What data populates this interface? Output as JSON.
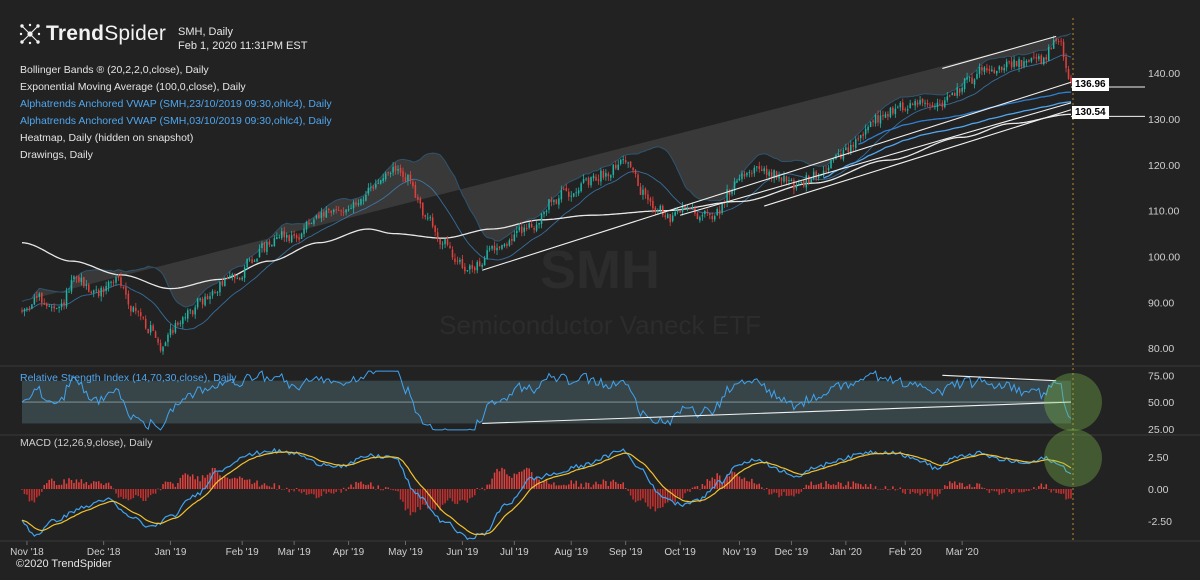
{
  "brand": {
    "name_bold": "Trend",
    "name_light": "Spider",
    "copyright": "©2020 TrendSpider"
  },
  "header": {
    "symbol_line": "SMH, Daily",
    "timestamp": "Feb 1, 2020 11:31PM EST"
  },
  "indicators": [
    {
      "label": "Bollinger Bands ® (20,2,2,0,close), Daily",
      "color": "#e4e4e4"
    },
    {
      "label": "Exponential Moving Average (100,0,close), Daily",
      "color": "#e4e4e4"
    },
    {
      "label": "Alphatrends Anchored VWAP (SMH,23/10/2019 09:30,ohlc4), Daily",
      "color": "#4fa6ee"
    },
    {
      "label": "Alphatrends Anchored VWAP (SMH,03/10/2019 09:30,ohlc4), Daily",
      "color": "#4fa6ee"
    },
    {
      "label": "Heatmap, Daily (hidden on snapshot)",
      "color": "#e4e4e4"
    },
    {
      "label": "Drawings, Daily",
      "color": "#e4e4e4"
    }
  ],
  "watermark": {
    "ticker": "SMH",
    "name": "Semiconductor Vaneck ETF"
  },
  "price_labels": {
    "upper": "136.96",
    "lower": "130.54"
  },
  "chart_data": {
    "type": "candlestick",
    "price_panel": {
      "ylim": [
        77,
        152
      ],
      "yticks": [
        80,
        90,
        100,
        110,
        120,
        130,
        140
      ],
      "ytick_labels": [
        "80.00",
        "90.00",
        "100.00",
        "110.00",
        "120.00",
        "130.00",
        "140.00"
      ],
      "anchors": [
        [
          0,
          88
        ],
        [
          6,
          91
        ],
        [
          14,
          88
        ],
        [
          22,
          95
        ],
        [
          30,
          92
        ],
        [
          38,
          95
        ],
        [
          46,
          88
        ],
        [
          52,
          84
        ],
        [
          56,
          80
        ],
        [
          60,
          84
        ],
        [
          66,
          87
        ],
        [
          72,
          90
        ],
        [
          78,
          92
        ],
        [
          82,
          95
        ],
        [
          88,
          96
        ],
        [
          92,
          99
        ],
        [
          98,
          102
        ],
        [
          104,
          105
        ],
        [
          110,
          104
        ],
        [
          116,
          107
        ],
        [
          122,
          109
        ],
        [
          128,
          110
        ],
        [
          134,
          111
        ],
        [
          140,
          114
        ],
        [
          146,
          117
        ],
        [
          150,
          119
        ],
        [
          156,
          117
        ],
        [
          160,
          112
        ],
        [
          164,
          108
        ],
        [
          170,
          103
        ],
        [
          176,
          99
        ],
        [
          181,
          97
        ],
        [
          186,
          99
        ],
        [
          190,
          102
        ],
        [
          196,
          103
        ],
        [
          202,
          106
        ],
        [
          208,
          107
        ],
        [
          214,
          112
        ],
        [
          220,
          114
        ],
        [
          228,
          116
        ],
        [
          236,
          118
        ],
        [
          242,
          121
        ],
        [
          246,
          120
        ],
        [
          250,
          114
        ],
        [
          256,
          111
        ],
        [
          262,
          108
        ],
        [
          268,
          111
        ],
        [
          274,
          109
        ],
        [
          280,
          109
        ],
        [
          286,
          114
        ],
        [
          290,
          118
        ],
        [
          296,
          119
        ],
        [
          302,
          118
        ],
        [
          308,
          117
        ],
        [
          314,
          115
        ],
        [
          318,
          117
        ],
        [
          322,
          118
        ],
        [
          328,
          121
        ],
        [
          334,
          123
        ],
        [
          340,
          127
        ],
        [
          346,
          130
        ],
        [
          352,
          132
        ],
        [
          358,
          133
        ],
        [
          364,
          134
        ],
        [
          370,
          133
        ],
        [
          376,
          135
        ],
        [
          382,
          138
        ],
        [
          388,
          141
        ],
        [
          394,
          141
        ],
        [
          400,
          142
        ],
        [
          406,
          142
        ],
        [
          412,
          143
        ],
        [
          416,
          145
        ],
        [
          418,
          148
        ],
        [
          420,
          146
        ],
        [
          422,
          142
        ],
        [
          424,
          137
        ]
      ],
      "ema100_anchors": [
        [
          0,
          103
        ],
        [
          20,
          99
        ],
        [
          40,
          96
        ],
        [
          60,
          93
        ],
        [
          80,
          95
        ],
        [
          100,
          99
        ],
        [
          120,
          103
        ],
        [
          140,
          106
        ],
        [
          150,
          105
        ],
        [
          170,
          104
        ],
        [
          190,
          106
        ],
        [
          210,
          108
        ],
        [
          230,
          109
        ],
        [
          260,
          110
        ],
        [
          290,
          112
        ],
        [
          320,
          116
        ],
        [
          350,
          121
        ],
        [
          380,
          126
        ],
        [
          400,
          129
        ],
        [
          424,
          131
        ]
      ],
      "bollinger_width": 6.5,
      "bollinger_start_bar": 0,
      "vwap_oct23_anchor_bar": 338,
      "vwap_oct03_anchor_bar": 324,
      "horizontal_levels": [
        136.96,
        130.54
      ],
      "trendlines": [
        {
          "from": [
            186,
            97
          ],
          "to": [
            424,
            138
          ]
        },
        {
          "from": [
            266,
            109
          ],
          "to": [
            424,
            133.5
          ]
        },
        {
          "from": [
            300,
            111
          ],
          "to": [
            424,
            132
          ]
        },
        {
          "from": [
            372,
            141
          ],
          "to": [
            418,
            148
          ]
        }
      ]
    },
    "rsi_panel": {
      "title": "Relative Strength Index (14,70,30,close), Daily",
      "ylim": [
        22,
        80
      ],
      "band": [
        30,
        70
      ],
      "midline": 50,
      "yticks": [
        25,
        50,
        75
      ],
      "ytick_labels": [
        "25.00",
        "50.00",
        "75.00"
      ],
      "trendlines": [
        {
          "from": [
            186,
            30
          ],
          "to": [
            424,
            50
          ]
        },
        {
          "from": [
            372,
            75
          ],
          "to": [
            418,
            70
          ]
        }
      ]
    },
    "macd_panel": {
      "title": "MACD (12,26,9,close), Daily",
      "ylim": [
        -4,
        4
      ],
      "yticks": [
        2.5,
        0,
        -2.5
      ],
      "ytick_labels": [
        "2.50",
        "0.00",
        "-2.50"
      ],
      "macd_anchors": [
        [
          0,
          -2.5
        ],
        [
          5,
          -3.6
        ],
        [
          14,
          -2.4
        ],
        [
          24,
          -1.5
        ],
        [
          34,
          -0.8
        ],
        [
          44,
          -2.2
        ],
        [
          52,
          -3.0
        ],
        [
          60,
          -2.2
        ],
        [
          70,
          -0.5
        ],
        [
          80,
          1.5
        ],
        [
          90,
          2.6
        ],
        [
          100,
          3.0
        ],
        [
          110,
          2.8
        ],
        [
          120,
          2.0
        ],
        [
          130,
          1.8
        ],
        [
          140,
          2.6
        ],
        [
          150,
          2.5
        ],
        [
          160,
          -0.5
        ],
        [
          170,
          -2.5
        ],
        [
          180,
          -3.8
        ],
        [
          186,
          -3.6
        ],
        [
          196,
          -1.2
        ],
        [
          206,
          0.8
        ],
        [
          216,
          1.2
        ],
        [
          226,
          1.8
        ],
        [
          236,
          2.5
        ],
        [
          242,
          3.1
        ],
        [
          250,
          1.6
        ],
        [
          258,
          -0.5
        ],
        [
          266,
          -1.2
        ],
        [
          274,
          -0.8
        ],
        [
          282,
          0.5
        ],
        [
          290,
          2.0
        ],
        [
          298,
          2.3
        ],
        [
          306,
          1.5
        ],
        [
          314,
          1.0
        ],
        [
          322,
          1.8
        ],
        [
          332,
          2.4
        ],
        [
          342,
          2.9
        ],
        [
          352,
          2.9
        ],
        [
          362,
          2.3
        ],
        [
          370,
          1.6
        ],
        [
          376,
          2.4
        ],
        [
          386,
          2.8
        ],
        [
          396,
          2.3
        ],
        [
          406,
          2.0
        ],
        [
          414,
          2.4
        ],
        [
          420,
          1.8
        ],
        [
          424,
          1.3
        ]
      ]
    },
    "x_axis": {
      "labels": [
        "Nov '18",
        "Dec '18",
        "Jan '19",
        "Feb '19",
        "Mar '19",
        "Apr '19",
        "May '19",
        "Jun '19",
        "Jul '19",
        "Aug '19",
        "Sep '19",
        "Oct '19",
        "Nov '19",
        "Dec '19",
        "Jan '20",
        "Feb '20",
        "Mar '20"
      ],
      "label_bars": [
        2,
        33,
        60,
        89,
        110,
        132,
        155,
        178,
        199,
        222,
        244,
        266,
        290,
        311,
        333,
        357,
        380
      ]
    }
  }
}
